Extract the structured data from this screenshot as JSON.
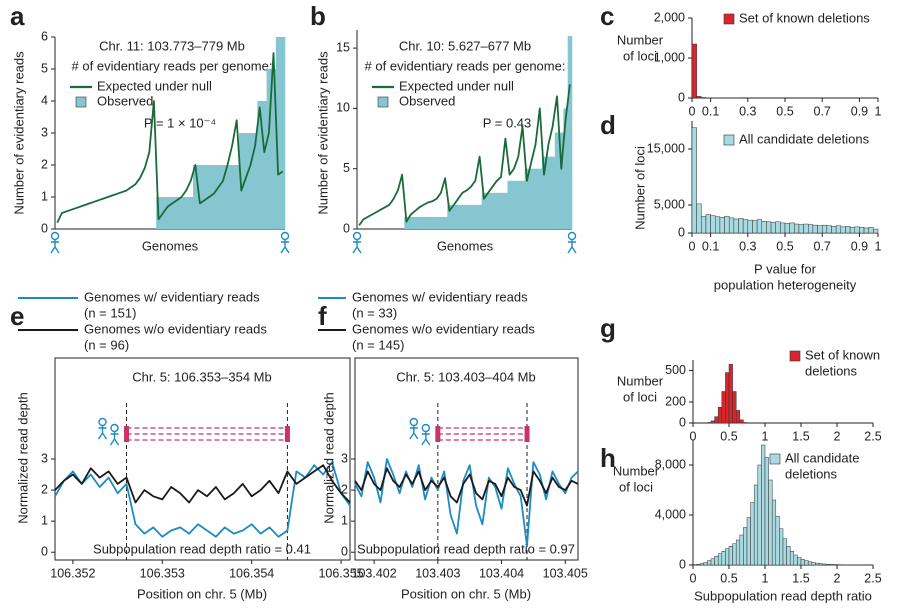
{
  "chart_data": [
    {
      "type": "line",
      "label": "a",
      "title": "Chr. 11: 103.773–779 Mb",
      "subtitle": "# of evidentiary reads per genome:",
      "annotation": "P = 1 × 10⁻⁴",
      "xlabel": "Genomes",
      "ylabel": "Number of evidentiary reads",
      "ylim": [
        0,
        6
      ],
      "yticks": [
        0,
        1,
        2,
        3,
        4,
        5,
        6
      ],
      "series": [
        {
          "name": "Expected under null",
          "kind": "line",
          "color": "#1b6b3a",
          "values": [
            0.2,
            0.5,
            0.55,
            0.6,
            0.65,
            0.7,
            0.75,
            0.8,
            0.85,
            0.9,
            0.95,
            1.0,
            1.05,
            1.1,
            1.15,
            1.2,
            1.3,
            1.4,
            1.6,
            1.9,
            2.4,
            4.0,
            0.3,
            0.5,
            0.7,
            0.8,
            0.9,
            1.0,
            1.2,
            1.5,
            2.0,
            0.8,
            0.9,
            1.0,
            1.1,
            1.3,
            1.5,
            2.0,
            2.6,
            3.4,
            1.2,
            1.6,
            2.0,
            2.6,
            3.8,
            2.4,
            3.0,
            5.5,
            1.7,
            1.8
          ]
        },
        {
          "name": "Observed",
          "kind": "bar",
          "color": "#86c6d0",
          "values": [
            0,
            0,
            0,
            0,
            0,
            0,
            0,
            0,
            0,
            0,
            0,
            0,
            0,
            0,
            0,
            0,
            0,
            0,
            0,
            0,
            0,
            0,
            1,
            1,
            1,
            1,
            1,
            1,
            1,
            1,
            2,
            2,
            2,
            2,
            2,
            2,
            2,
            2,
            2,
            2,
            3,
            3,
            3,
            3,
            4,
            4,
            5,
            5,
            6,
            6
          ]
        }
      ]
    },
    {
      "type": "line",
      "label": "b",
      "title": "Chr. 10: 5.627–677 Mb",
      "subtitle": "# of evidentiary reads per genome:",
      "annotation": "P = 0.43",
      "xlabel": "Genomes",
      "ylabel": "Number of evidentiary reads",
      "ylim": [
        0,
        16.5
      ],
      "yticks": [
        0,
        5,
        10,
        15
      ],
      "series": [
        {
          "name": "Expected under null",
          "kind": "line",
          "color": "#1b6b3a",
          "values": [
            0.3,
            0.8,
            1.0,
            1.2,
            1.4,
            1.6,
            1.8,
            2.0,
            2.5,
            3.2,
            4.5,
            0.6,
            1.2,
            1.5,
            1.8,
            2.0,
            2.2,
            2.3,
            2.5,
            3.0,
            4.2,
            1.5,
            2.0,
            2.5,
            3.0,
            3.2,
            3.5,
            4.0,
            6.0,
            2.5,
            3.0,
            3.5,
            4.0,
            4.3,
            7.5,
            4.5,
            5.0,
            6.0,
            8.5,
            4.0,
            5.5,
            7.0,
            10.0,
            4.5,
            7.0,
            8.5,
            11.0,
            5.0,
            9.0,
            12.0
          ]
        },
        {
          "name": "Observed",
          "kind": "bar",
          "color": "#86c6d0",
          "values": [
            0,
            0,
            0,
            0,
            0,
            0,
            0,
            0,
            0,
            0,
            0,
            1,
            1,
            1,
            1,
            1,
            1,
            1,
            1,
            1,
            1,
            2,
            2,
            2,
            2,
            2,
            2,
            2,
            2,
            3,
            3,
            3,
            3,
            3,
            3,
            4,
            4,
            4,
            4,
            5,
            5,
            5,
            5,
            6,
            6,
            6,
            8,
            8,
            10,
            16
          ]
        }
      ]
    },
    {
      "type": "histogram",
      "label": "c",
      "ylabel": [
        "Number",
        "of loci"
      ],
      "xlim": [
        0,
        1
      ],
      "ylim": [
        0,
        2000
      ],
      "xticks": [
        0,
        0.1,
        0.3,
        0.5,
        0.7,
        0.9,
        1
      ],
      "yticks": [
        0,
        {
          "value": 1000,
          "label": "1,000"
        },
        {
          "value": 2000,
          "label": "2,000"
        }
      ],
      "bins": [
        0,
        0.025,
        0.05,
        0.075,
        0.1,
        0.125,
        0.15,
        0.175,
        0.2,
        0.225,
        0.25,
        0.275,
        0.3,
        0.325,
        0.35,
        0.375,
        0.4,
        0.425,
        0.45,
        0.475,
        0.5,
        0.525,
        0.55,
        0.575,
        0.6,
        0.625,
        0.65,
        0.675,
        0.7,
        0.725,
        0.75,
        0.775,
        0.8,
        0.825,
        0.85,
        0.875,
        0.9,
        0.925,
        0.95,
        0.975,
        1
      ],
      "series": [
        {
          "name": [
            "Set of known deletions"
          ],
          "color": "#d7262d",
          "values": [
            1350,
            40,
            12,
            6,
            4,
            3,
            2,
            2,
            1,
            1,
            0,
            0,
            0,
            0,
            0,
            0,
            0,
            0,
            0,
            0,
            0,
            0,
            0,
            0,
            0,
            0,
            0,
            0,
            0,
            0,
            0,
            0,
            0,
            0,
            0,
            0,
            0,
            0,
            0,
            0
          ]
        }
      ]
    },
    {
      "type": "histogram",
      "label": "d",
      "ylabel": "Number of loci",
      "xlabel": [
        "P value for",
        "population heterogeneity"
      ],
      "xlim": [
        0,
        1
      ],
      "ylim": [
        0,
        20000
      ],
      "xticks": [
        0,
        0.1,
        0.3,
        0.5,
        0.7,
        0.9,
        1
      ],
      "yticks": [
        0,
        {
          "value": 5000,
          "label": "5,000"
        },
        {
          "value": 15000,
          "label": "15,000"
        }
      ],
      "bins": [
        0,
        0.025,
        0.05,
        0.075,
        0.1,
        0.125,
        0.15,
        0.175,
        0.2,
        0.225,
        0.25,
        0.275,
        0.3,
        0.325,
        0.35,
        0.375,
        0.4,
        0.425,
        0.45,
        0.475,
        0.5,
        0.525,
        0.55,
        0.575,
        0.6,
        0.625,
        0.65,
        0.675,
        0.7,
        0.725,
        0.75,
        0.775,
        0.8,
        0.825,
        0.85,
        0.875,
        0.9,
        0.925,
        0.95,
        0.975,
        1
      ],
      "series": [
        {
          "name": [
            "All candidate deletions"
          ],
          "color": "#a9dae1",
          "values": [
            18800,
            5200,
            3000,
            3300,
            3100,
            2900,
            2800,
            3000,
            2700,
            2500,
            2600,
            2400,
            2300,
            2200,
            2400,
            2100,
            2000,
            1900,
            2000,
            1800,
            1700,
            1800,
            1600,
            1500,
            1600,
            1500,
            1400,
            1300,
            1400,
            1300,
            1200,
            1300,
            1100,
            1200,
            1000,
            1100,
            1000,
            900,
            1000,
            700
          ]
        }
      ]
    },
    {
      "type": "line",
      "label": "e",
      "title": "Chr. 5: 106.353–354 Mb",
      "annotation": "Subpopulation read depth ratio = 0.41",
      "xlabel": "Position on chr. 5 (Mb)",
      "ylabel": "Normalized read depth",
      "xlim": [
        106.3518,
        106.3551
      ],
      "ylim": [
        -0.25,
        6.25
      ],
      "xticks": [
        106.352,
        106.353,
        106.354,
        106.355
      ],
      "yticks": [
        0,
        1,
        2,
        3
      ],
      "breakpoints": [
        106.3526,
        106.3544
      ],
      "x": [
        106.3518,
        106.3519,
        106.352,
        106.3521,
        106.3522,
        106.3523,
        106.3524,
        106.3525,
        106.3526,
        106.3527,
        106.3528,
        106.3529,
        106.353,
        106.3531,
        106.3532,
        106.3533,
        106.3534,
        106.3535,
        106.3536,
        106.3537,
        106.3538,
        106.3539,
        106.354,
        106.3541,
        106.3542,
        106.3543,
        106.3544,
        106.3545,
        106.3546,
        106.3547,
        106.3548,
        106.3549,
        106.355,
        106.3551
      ],
      "series": [
        {
          "name": [
            "Genomes w/ evidentiary reads",
            "(n = 151)"
          ],
          "color": "#1b8cc4",
          "values": [
            1.8,
            2.3,
            2.6,
            2.2,
            2.5,
            2.1,
            2.4,
            1.9,
            2.2,
            0.9,
            0.6,
            0.8,
            0.5,
            0.7,
            0.8,
            0.6,
            0.9,
            0.7,
            0.5,
            0.8,
            0.6,
            0.7,
            0.9,
            0.6,
            0.8,
            0.5,
            0.7,
            2.6,
            2.4,
            2.8,
            2.5,
            2.9,
            1.9,
            1.5
          ]
        },
        {
          "name": [
            "Genomes w/o evidentiary reads",
            "(n = 96)"
          ],
          "color": "#1a1a1a",
          "values": [
            2.0,
            2.3,
            2.5,
            2.2,
            2.7,
            2.4,
            2.6,
            2.2,
            2.4,
            1.6,
            2.0,
            1.8,
            1.7,
            2.1,
            1.9,
            1.6,
            2.0,
            1.8,
            2.1,
            1.7,
            1.9,
            2.2,
            1.8,
            2.0,
            2.3,
            1.9,
            2.6,
            2.2,
            2.4,
            2.6,
            2.8,
            2.3,
            1.9,
            1.6
          ]
        }
      ]
    },
    {
      "type": "line",
      "label": "f",
      "title": "Chr. 5: 103.403–404 Mb",
      "annotation": "Subpopulation read depth ratio = 0.97",
      "xlabel": "Position on chr. 5 (Mb)",
      "ylabel": "Normalized read depth",
      "xlim": [
        103.4017,
        103.4052
      ],
      "ylim": [
        -0.25,
        6.25
      ],
      "xticks": [
        103.402,
        103.403,
        103.404,
        103.405
      ],
      "yticks": [
        0,
        1,
        2,
        3
      ],
      "breakpoints": [
        103.403,
        103.4044
      ],
      "x": [
        103.4017,
        103.4018,
        103.4019,
        103.402,
        103.4021,
        103.4022,
        103.4023,
        103.4024,
        103.4025,
        103.4026,
        103.4027,
        103.4028,
        103.4029,
        103.403,
        103.4031,
        103.4032,
        103.4033,
        103.4034,
        103.4035,
        103.4036,
        103.4037,
        103.4038,
        103.4039,
        103.404,
        103.4041,
        103.4042,
        103.4043,
        103.4044,
        103.4045,
        103.4046,
        103.4047,
        103.4048,
        103.4049,
        103.405,
        103.4051,
        103.4052
      ],
      "series": [
        {
          "name": [
            "Genomes w/ evidentiary reads",
            "(n = 33)"
          ],
          "color": "#1b8cc4",
          "values": [
            2.2,
            1.8,
            2.9,
            2.4,
            1.6,
            3.0,
            2.5,
            1.9,
            2.6,
            2.1,
            2.8,
            1.7,
            2.4,
            2.0,
            2.6,
            1.2,
            0.6,
            2.3,
            2.8,
            1.5,
            0.9,
            2.4,
            2.1,
            1.4,
            2.7,
            2.2,
            1.8,
            0.2,
            2.9,
            2.5,
            1.7,
            2.6,
            2.2,
            1.9,
            2.4,
            2.6
          ]
        },
        {
          "name": [
            "Genomes w/o evidentiary reads",
            "(n = 145)"
          ],
          "color": "#1a1a1a",
          "values": [
            2.3,
            2.0,
            2.6,
            2.2,
            2.0,
            2.7,
            2.3,
            2.1,
            2.5,
            2.2,
            2.6,
            2.0,
            2.3,
            2.1,
            2.4,
            1.8,
            1.6,
            2.2,
            2.5,
            1.9,
            1.7,
            2.3,
            2.2,
            1.8,
            2.4,
            2.1,
            2.0,
            1.5,
            2.6,
            2.3,
            1.9,
            2.4,
            2.1,
            2.0,
            2.3,
            2.2
          ]
        }
      ]
    },
    {
      "type": "histogram",
      "label": "g",
      "ylabel": [
        "Number",
        "of loci"
      ],
      "xlim": [
        0,
        2.5
      ],
      "ylim": [
        0,
        600
      ],
      "xticks": [
        0,
        0.5,
        1,
        1.5,
        2,
        2.5
      ],
      "yticks": [
        0,
        200,
        500
      ],
      "bins": [
        0.2,
        0.25,
        0.3,
        0.35,
        0.4,
        0.45,
        0.5,
        0.55,
        0.6,
        0.65,
        0.7,
        0.75
      ],
      "series": [
        {
          "name": [
            "Set of known",
            "deletions"
          ],
          "color": "#d7262d",
          "values": [
            5,
            20,
            60,
            150,
            300,
            480,
            560,
            300,
            120,
            30,
            5
          ]
        }
      ]
    },
    {
      "type": "histogram",
      "label": "h",
      "ylabel": [
        "Number",
        "of loci"
      ],
      "xlabel": [
        "Subpopulation read depth ratio"
      ],
      "xlim": [
        0,
        2.5
      ],
      "ylim": [
        0,
        10000
      ],
      "xticks": [
        0,
        0.5,
        1,
        1.5,
        2,
        2.5
      ],
      "yticks": [
        0,
        {
          "value": 4000,
          "label": "4,000"
        },
        {
          "value": 8000,
          "label": "8,000"
        }
      ],
      "bins": [
        0,
        0.05,
        0.1,
        0.15,
        0.2,
        0.25,
        0.3,
        0.35,
        0.4,
        0.45,
        0.5,
        0.55,
        0.6,
        0.65,
        0.7,
        0.75,
        0.8,
        0.85,
        0.9,
        0.95,
        1,
        1.05,
        1.1,
        1.15,
        1.2,
        1.25,
        1.3,
        1.35,
        1.4,
        1.45,
        1.5,
        1.55,
        1.6,
        1.65,
        1.7,
        1.75,
        1.8,
        1.85,
        1.9,
        1.95,
        2,
        2.05,
        2.1,
        2.15,
        2.2,
        2.25,
        2.3,
        2.35,
        2.4,
        2.45,
        2.5
      ],
      "series": [
        {
          "name": [
            "All candidate",
            "deletions"
          ],
          "color": "#a9dae1",
          "values": [
            30,
            60,
            120,
            200,
            350,
            500,
            700,
            900,
            1100,
            1300,
            1500,
            1700,
            2000,
            2400,
            3000,
            3800,
            5000,
            6400,
            8000,
            9600,
            8600,
            6800,
            5200,
            3900,
            2900,
            2100,
            1500,
            1100,
            800,
            600,
            450,
            350,
            260,
            200,
            150,
            110,
            80,
            60,
            45,
            35,
            25,
            20,
            15,
            10,
            8,
            6,
            5,
            4,
            3,
            2
          ]
        }
      ]
    }
  ]
}
